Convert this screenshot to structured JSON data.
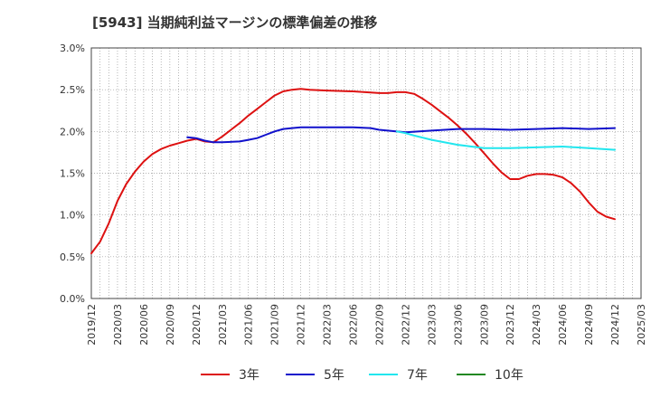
{
  "chart_data": {
    "type": "line",
    "title": "[5943]  当期純利益マージンの標準偏差の推移",
    "xlabel": "",
    "ylabel": "",
    "ylim": [
      0,
      3.0
    ],
    "yticks": [
      "0.0%",
      "0.5%",
      "1.0%",
      "1.5%",
      "2.0%",
      "2.5%",
      "3.0%"
    ],
    "grid": true,
    "legend_position": "bottom",
    "x": [
      "2019/12",
      "2020/03",
      "2020/06",
      "2020/09",
      "2020/12",
      "2021/03",
      "2021/06",
      "2021/09",
      "2021/12",
      "2022/03",
      "2022/06",
      "2022/09",
      "2022/12",
      "2023/03",
      "2023/06",
      "2023/09",
      "2023/12",
      "2024/03",
      "2024/06",
      "2024/09",
      "2024/12",
      "2025/03"
    ],
    "series": [
      {
        "name": "3年",
        "color": "#dd1111",
        "points": [
          [
            "2019/12",
            0.54
          ],
          [
            "2020/01",
            0.68
          ],
          [
            "2020/02",
            0.9
          ],
          [
            "2020/03",
            1.17
          ],
          [
            "2020/04",
            1.37
          ],
          [
            "2020/05",
            1.52
          ],
          [
            "2020/06",
            1.64
          ],
          [
            "2020/07",
            1.73
          ],
          [
            "2020/08",
            1.79
          ],
          [
            "2020/09",
            1.83
          ],
          [
            "2020/10",
            1.86
          ],
          [
            "2020/11",
            1.89
          ],
          [
            "2020/12",
            1.91
          ],
          [
            "2021/01",
            1.88
          ],
          [
            "2021/02",
            1.87
          ],
          [
            "2021/03",
            1.94
          ],
          [
            "2021/04",
            2.02
          ],
          [
            "2021/05",
            2.1
          ],
          [
            "2021/06",
            2.19
          ],
          [
            "2021/07",
            2.27
          ],
          [
            "2021/08",
            2.35
          ],
          [
            "2021/09",
            2.43
          ],
          [
            "2021/10",
            2.48
          ],
          [
            "2021/11",
            2.5
          ],
          [
            "2021/12",
            2.51
          ],
          [
            "2022/01",
            2.5
          ],
          [
            "2022/03",
            2.49
          ],
          [
            "2022/06",
            2.48
          ],
          [
            "2022/09",
            2.46
          ],
          [
            "2022/10",
            2.46
          ],
          [
            "2022/11",
            2.47
          ],
          [
            "2022/12",
            2.47
          ],
          [
            "2023/01",
            2.45
          ],
          [
            "2023/02",
            2.39
          ],
          [
            "2023/03",
            2.32
          ],
          [
            "2023/04",
            2.24
          ],
          [
            "2023/05",
            2.16
          ],
          [
            "2023/06",
            2.07
          ],
          [
            "2023/07",
            1.97
          ],
          [
            "2023/08",
            1.86
          ],
          [
            "2023/09",
            1.74
          ],
          [
            "2023/10",
            1.62
          ],
          [
            "2023/11",
            1.51
          ],
          [
            "2023/12",
            1.43
          ],
          [
            "2024/01",
            1.43
          ],
          [
            "2024/02",
            1.47
          ],
          [
            "2024/03",
            1.49
          ],
          [
            "2024/04",
            1.49
          ],
          [
            "2024/05",
            1.48
          ],
          [
            "2024/06",
            1.45
          ],
          [
            "2024/07",
            1.38
          ],
          [
            "2024/08",
            1.28
          ],
          [
            "2024/09",
            1.15
          ],
          [
            "2024/10",
            1.04
          ],
          [
            "2024/11",
            0.98
          ],
          [
            "2024/12",
            0.95
          ]
        ]
      },
      {
        "name": "5年",
        "color": "#1111cc",
        "points": [
          [
            "2020/11",
            1.93
          ],
          [
            "2020/12",
            1.92
          ],
          [
            "2021/01",
            1.89
          ],
          [
            "2021/02",
            1.87
          ],
          [
            "2021/03",
            1.87
          ],
          [
            "2021/05",
            1.88
          ],
          [
            "2021/06",
            1.9
          ],
          [
            "2021/07",
            1.92
          ],
          [
            "2021/08",
            1.96
          ],
          [
            "2021/09",
            2.0
          ],
          [
            "2021/10",
            2.03
          ],
          [
            "2021/11",
            2.04
          ],
          [
            "2021/12",
            2.05
          ],
          [
            "2022/03",
            2.05
          ],
          [
            "2022/06",
            2.05
          ],
          [
            "2022/08",
            2.04
          ],
          [
            "2022/09",
            2.02
          ],
          [
            "2022/12",
            1.99
          ],
          [
            "2023/03",
            2.01
          ],
          [
            "2023/06",
            2.03
          ],
          [
            "2023/09",
            2.03
          ],
          [
            "2023/12",
            2.02
          ],
          [
            "2024/03",
            2.03
          ],
          [
            "2024/06",
            2.04
          ],
          [
            "2024/09",
            2.03
          ],
          [
            "2024/12",
            2.04
          ]
        ]
      },
      {
        "name": "7年",
        "color": "#22e6ee",
        "points": [
          [
            "2022/11",
            2.0
          ],
          [
            "2022/12",
            1.98
          ],
          [
            "2023/01",
            1.95
          ],
          [
            "2023/03",
            1.9
          ],
          [
            "2023/06",
            1.84
          ],
          [
            "2023/09",
            1.8
          ],
          [
            "2023/12",
            1.8
          ],
          [
            "2024/03",
            1.81
          ],
          [
            "2024/06",
            1.82
          ],
          [
            "2024/09",
            1.8
          ],
          [
            "2024/12",
            1.78
          ]
        ]
      },
      {
        "name": "10年",
        "color": "#228822",
        "points": []
      }
    ]
  }
}
